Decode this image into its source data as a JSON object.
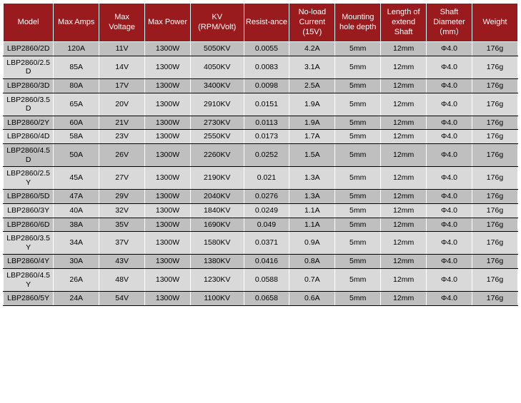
{
  "table": {
    "header_bg": "#9a1b1e",
    "header_fg": "#ffffff",
    "row_odd_bg": "#bfbfbf",
    "row_even_bg": "#d9d9d9",
    "columns": [
      "Model",
      "Max Amps",
      "Max Voltage",
      "Max Power",
      "KV (RPM/Volt)",
      "Resist-ance",
      "No-load Current (15V)",
      "Mounting hole depth",
      "Length of extend Shaft",
      "Shaft Diameter （mm）",
      "Weight"
    ],
    "rows": [
      [
        "LBP2860/2D",
        "120A",
        "11V",
        "1300W",
        "5050KV",
        "0.0055",
        "4.2A",
        "5mm",
        "12mm",
        "Φ4.0",
        "176g"
      ],
      [
        "LBP2860/2.5D",
        "85A",
        "14V",
        "1300W",
        "4050KV",
        "0.0083",
        "3.1A",
        "5mm",
        "12mm",
        "Φ4.0",
        "176g"
      ],
      [
        "LBP2860/3D",
        "80A",
        "17V",
        "1300W",
        "3400KV",
        "0.0098",
        "2.5A",
        "5mm",
        "12mm",
        "Φ4.0",
        "176g"
      ],
      [
        "LBP2860/3.5D",
        "65A",
        "20V",
        "1300W",
        "2910KV",
        "0.0151",
        "1.9A",
        "5mm",
        "12mm",
        "Φ4.0",
        "176g"
      ],
      [
        "LBP2860/2Y",
        "60A",
        "21V",
        "1300W",
        "2730KV",
        "0.0113",
        "1.9A",
        "5mm",
        "12mm",
        "Φ4.0",
        "176g"
      ],
      [
        "LBP2860/4D",
        "58A",
        "23V",
        "1300W",
        "2550KV",
        "0.0173",
        "1.7A",
        "5mm",
        "12mm",
        "Φ4.0",
        "176g"
      ],
      [
        "LBP2860/4.5D",
        "50A",
        "26V",
        "1300W",
        "2260KV",
        "0.0252",
        "1.5A",
        "5mm",
        "12mm",
        "Φ4.0",
        "176g"
      ],
      [
        "LBP2860/2.5Y",
        "45A",
        "27V",
        "1300W",
        "2190KV",
        "0.021",
        "1.3A",
        "5mm",
        "12mm",
        "Φ4.0",
        "176g"
      ],
      [
        "LBP2860/5D",
        "47A",
        "29V",
        "1300W",
        "2040KV",
        "0.0276",
        "1.3A",
        "5mm",
        "12mm",
        "Φ4.0",
        "176g"
      ],
      [
        "LBP2860/3Y",
        "40A",
        "32V",
        "1300W",
        "1840KV",
        "0.0249",
        "1.1A",
        "5mm",
        "12mm",
        "Φ4.0",
        "176g"
      ],
      [
        "LBP2860/6D",
        "38A",
        "35V",
        "1300W",
        "1690KV",
        "0.049",
        "1.1A",
        "5mm",
        "12mm",
        "Φ4.0",
        "176g"
      ],
      [
        "LBP2860/3.5Y",
        "34A",
        "37V",
        "1300W",
        "1580KV",
        "0.0371",
        "0.9A",
        "5mm",
        "12mm",
        "Φ4.0",
        "176g"
      ],
      [
        "LBP2860/4Y",
        "30A",
        "43V",
        "1300W",
        "1380KV",
        "0.0416",
        "0.8A",
        "5mm",
        "12mm",
        "Φ4.0",
        "176g"
      ],
      [
        "LBP2860/4.5Y",
        "26A",
        "48V",
        "1300W",
        "1230KV",
        "0.0588",
        "0.7A",
        "5mm",
        "12mm",
        "Φ4.0",
        "176g"
      ],
      [
        "LBP2860/5Y",
        "24A",
        "54V",
        "1300W",
        "1100KV",
        "0.0658",
        "0.6A",
        "5mm",
        "12mm",
        "Φ4.0",
        "176g"
      ]
    ]
  }
}
